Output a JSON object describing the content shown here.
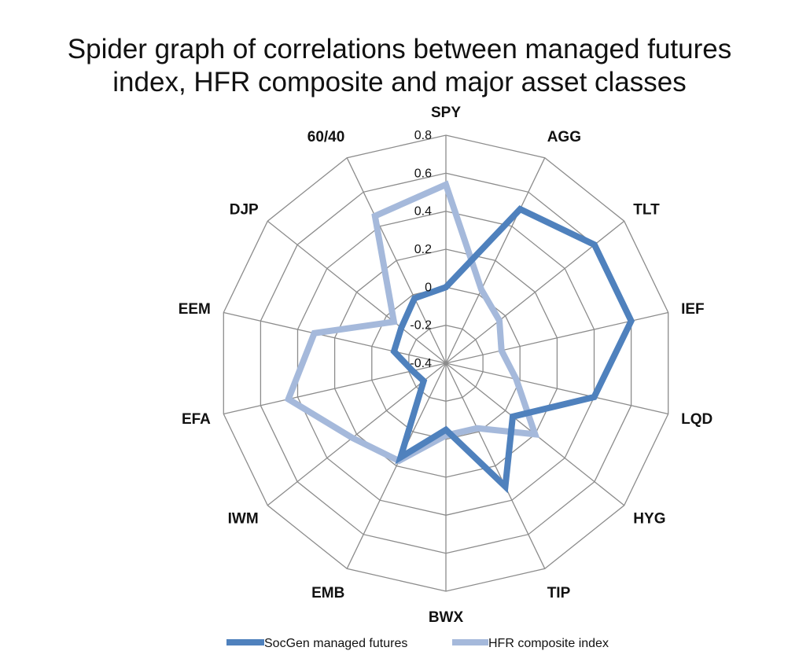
{
  "chart_data": {
    "type": "radar",
    "title_lines": [
      "Spider graph of correlations between managed futures",
      "index, HFR composite and major asset classes"
    ],
    "categories": [
      "SPY",
      "AGG",
      "TLT",
      "IEF",
      "LQD",
      "HYG",
      "TIP",
      "BWX",
      "EMB",
      "IWM",
      "EFA",
      "EEM",
      "DJP",
      "60/40"
    ],
    "rlim": [
      -0.4,
      0.8
    ],
    "ticks": [
      0.8,
      0.6,
      0.4,
      0.2,
      0,
      -0.2,
      -0.4
    ],
    "tick_labels": [
      "0.8",
      "0.6",
      "0.4",
      "0.2",
      "0",
      "-0.2",
      "-0.4"
    ],
    "grid": true,
    "legend_position": "bottom",
    "series": [
      {
        "name": "SocGen managed futures",
        "color": "#4F81BD",
        "values": [
          0.0,
          0.5,
          0.6,
          0.6,
          0.4,
          0.05,
          0.32,
          -0.05,
          0.15,
          -0.25,
          -0.22,
          -0.12,
          -0.1,
          -0.02
        ]
      },
      {
        "name": "HFR composite index",
        "color": "#A5B9DB",
        "values": [
          0.54,
          0.03,
          -0.04,
          -0.1,
          -0.02,
          0.2,
          -0.02,
          -0.02,
          0.17,
          0.23,
          0.45,
          0.31,
          -0.05,
          0.46
        ]
      }
    ]
  }
}
